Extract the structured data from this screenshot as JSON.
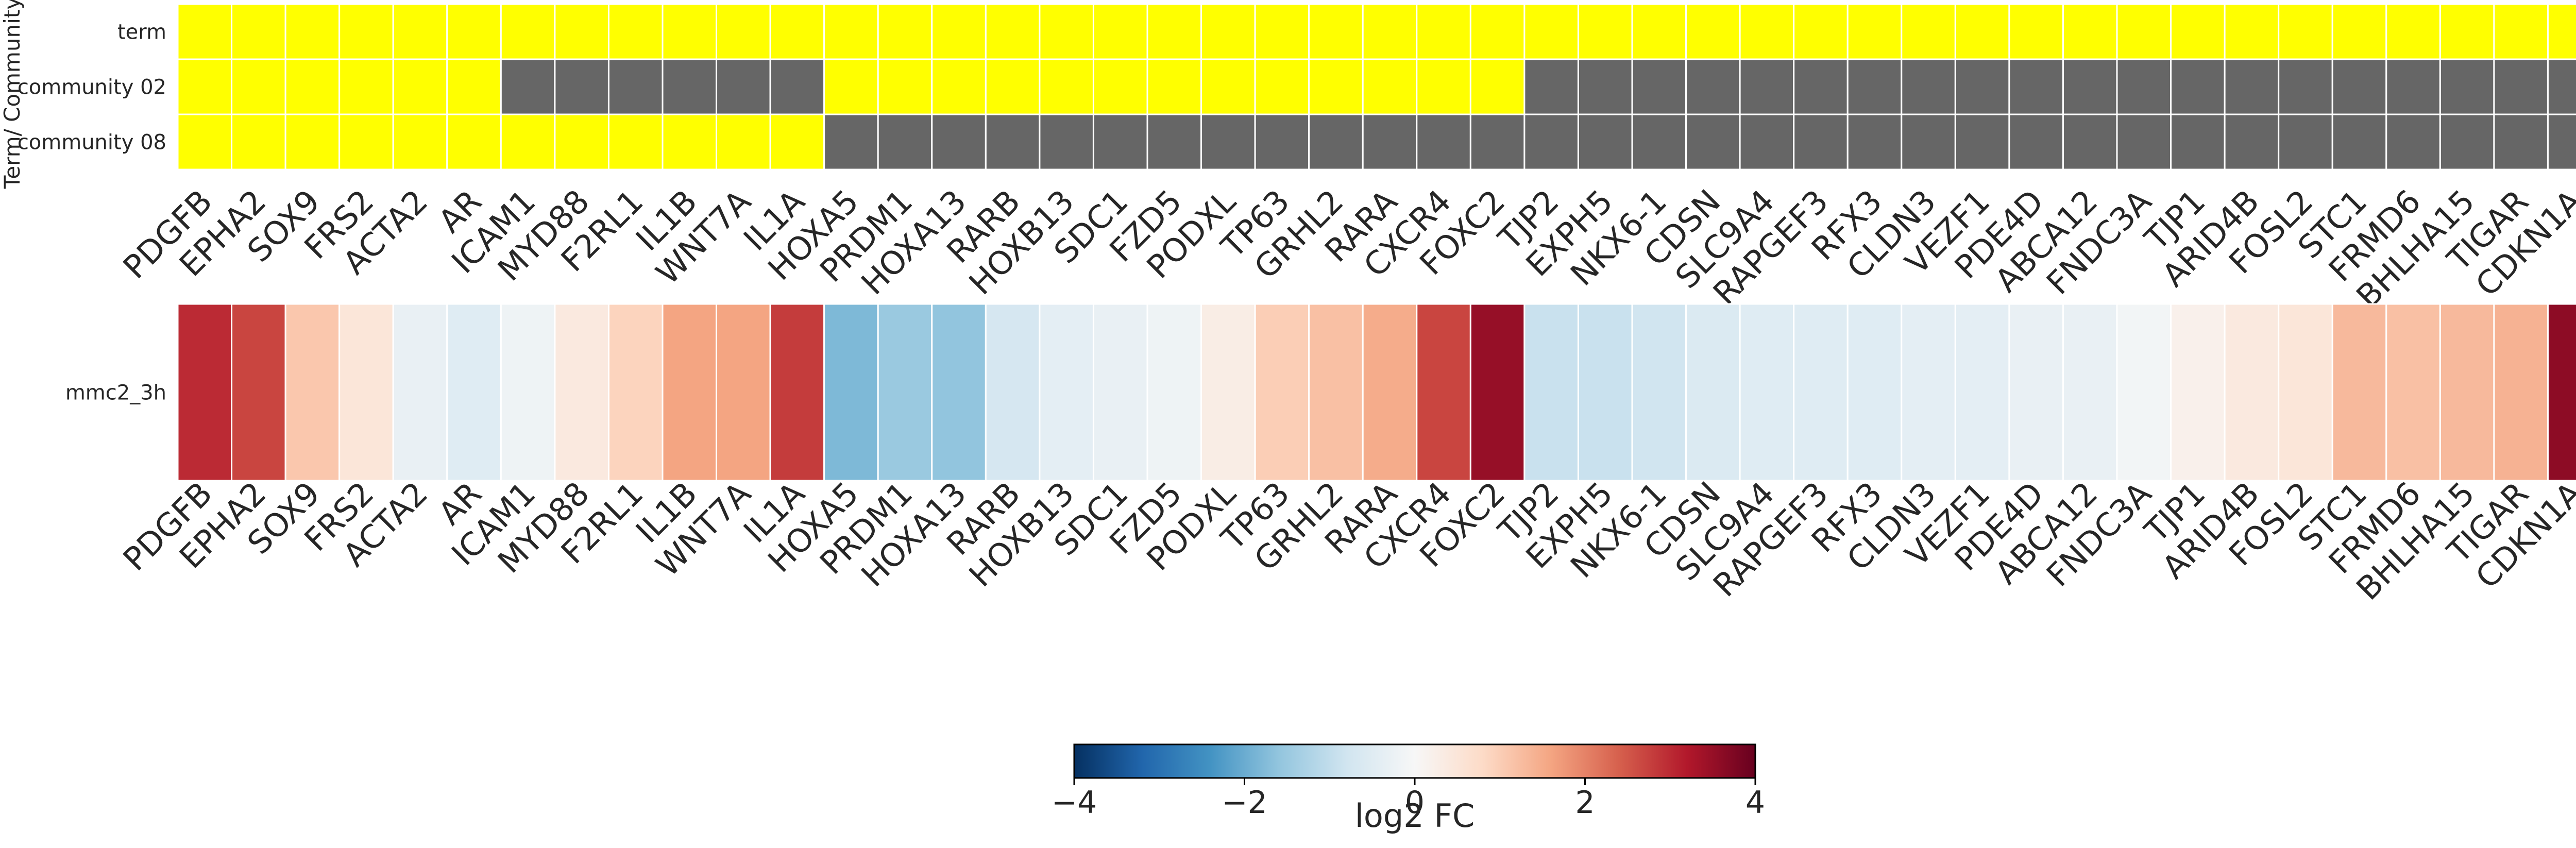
{
  "chart_data": [
    {
      "type": "heatmap",
      "ylabel": "Term/ Community",
      "rows": [
        "term",
        "community 02",
        "community 08"
      ],
      "columns": [
        "PDGFB",
        "EPHA2",
        "SOX9",
        "FRS2",
        "ACTA2",
        "AR",
        "ICAM1",
        "MYD88",
        "F2RL1",
        "IL1B",
        "WNT7A",
        "IL1A",
        "HOXA5",
        "PRDM1",
        "HOXA13",
        "RARB",
        "HOXB13",
        "SDC1",
        "FZD5",
        "PODXL",
        "TP63",
        "GRHL2",
        "RARA",
        "CXCR4",
        "FOXC2",
        "TJP2",
        "EXPH5",
        "NKX6-1",
        "CDSN",
        "SLC9A4",
        "RAPGEF3",
        "RFX3",
        "CLDN3",
        "VEZF1",
        "PDE4D",
        "ABCA12",
        "FNDC3A",
        "TJP1",
        "ARID4B",
        "FOSL2",
        "STC1",
        "FRMD6",
        "BHLHA15",
        "TIGAR",
        "CDKN1A"
      ],
      "membership": [
        [
          1,
          1,
          1,
          1,
          1,
          1,
          1,
          1,
          1,
          1,
          1,
          1,
          1,
          1,
          1,
          1,
          1,
          1,
          1,
          1,
          1,
          1,
          1,
          1,
          1,
          1,
          1,
          1,
          1,
          1,
          1,
          1,
          1,
          1,
          1,
          1,
          1,
          1,
          1,
          1,
          1,
          1,
          1,
          1,
          1
        ],
        [
          1,
          1,
          1,
          1,
          1,
          1,
          0,
          0,
          0,
          0,
          0,
          0,
          1,
          1,
          1,
          1,
          1,
          1,
          1,
          1,
          1,
          1,
          1,
          1,
          1,
          0,
          0,
          0,
          0,
          0,
          0,
          0,
          0,
          0,
          0,
          0,
          0,
          0,
          0,
          0,
          0,
          0,
          0,
          0,
          0
        ],
        [
          1,
          1,
          1,
          1,
          1,
          1,
          1,
          1,
          1,
          1,
          1,
          1,
          0,
          0,
          0,
          0,
          0,
          0,
          0,
          0,
          0,
          0,
          0,
          0,
          0,
          0,
          0,
          0,
          0,
          0,
          0,
          0,
          0,
          0,
          0,
          0,
          0,
          0,
          0,
          0,
          0,
          0,
          0,
          0,
          0
        ]
      ],
      "colors": {
        "member": "#ffff00",
        "non_member": "#666666"
      }
    },
    {
      "type": "heatmap",
      "rows": [
        "mmc2_3h"
      ],
      "columns": [
        "PDGFB",
        "EPHA2",
        "SOX9",
        "FRS2",
        "ACTA2",
        "AR",
        "ICAM1",
        "MYD88",
        "F2RL1",
        "IL1B",
        "WNT7A",
        "IL1A",
        "HOXA5",
        "PRDM1",
        "HOXA13",
        "RARB",
        "HOXB13",
        "SDC1",
        "FZD5",
        "PODXL",
        "TP63",
        "GRHL2",
        "RARA",
        "CXCR4",
        "FOXC2",
        "TJP2",
        "EXPH5",
        "NKX6-1",
        "CDSN",
        "SLC9A4",
        "RAPGEF3",
        "RFX3",
        "CLDN3",
        "VEZF1",
        "PDE4D",
        "ABCA12",
        "FNDC3A",
        "TJP1",
        "ARID4B",
        "FOSL2",
        "STC1",
        "FRMD6",
        "BHLHA15",
        "TIGAR",
        "CDKN1A"
      ],
      "values": [
        [
          3.0,
          2.7,
          1.1,
          0.5,
          -0.3,
          -0.5,
          -0.2,
          0.4,
          0.9,
          1.6,
          1.6,
          2.8,
          -1.8,
          -1.5,
          -1.6,
          -0.7,
          -0.4,
          -0.3,
          -0.2,
          0.3,
          1.0,
          1.2,
          1.5,
          2.7,
          3.5,
          -0.9,
          -0.9,
          -0.8,
          -0.6,
          -0.5,
          -0.5,
          -0.5,
          -0.4,
          -0.4,
          -0.3,
          -0.3,
          -0.1,
          0.2,
          0.4,
          0.5,
          1.3,
          1.2,
          1.3,
          1.4,
          3.6
        ]
      ],
      "colorbar": {
        "label": "log2 FC",
        "vmin": -4,
        "vmax": 4,
        "ticks": [
          "−4",
          "−2",
          "0",
          "2",
          "4"
        ]
      }
    }
  ]
}
